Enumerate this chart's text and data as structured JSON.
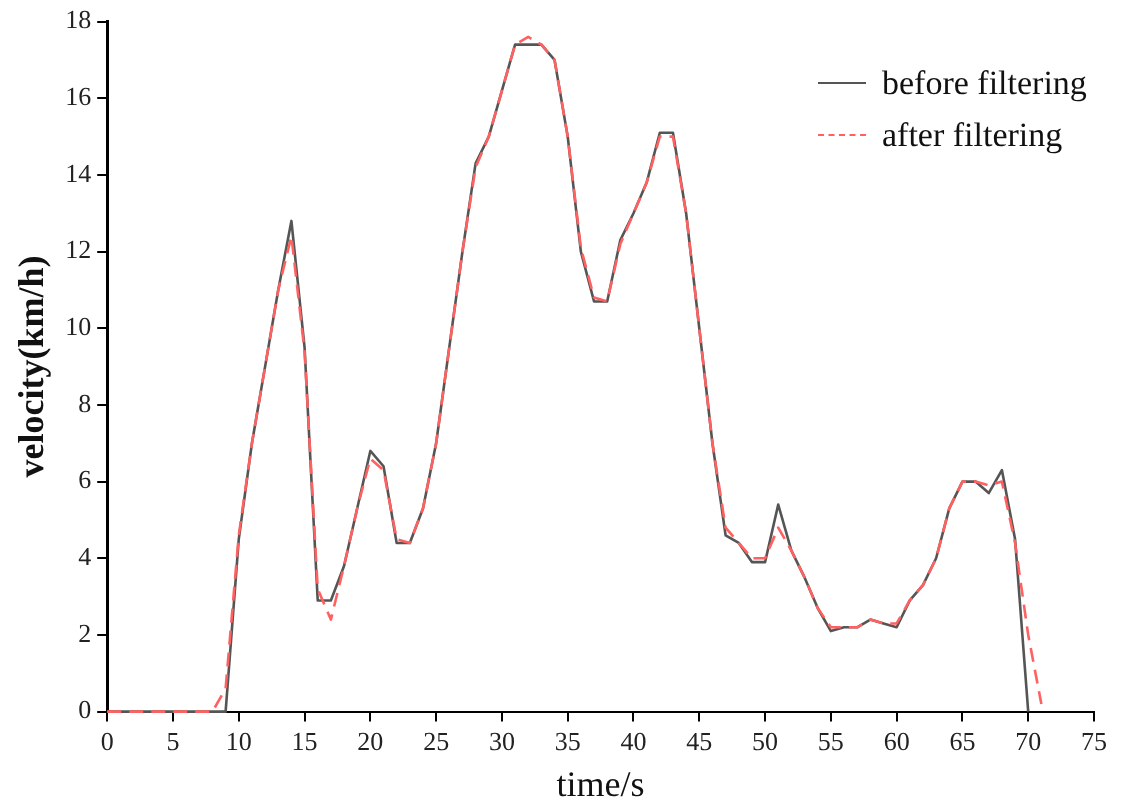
{
  "chart_data": {
    "type": "line",
    "xlabel": "time/s",
    "ylabel": "velocity(km/h)",
    "xlim": [
      0,
      75
    ],
    "xticks": [
      0,
      5,
      10,
      15,
      20,
      25,
      30,
      35,
      40,
      45,
      50,
      55,
      60,
      65,
      70,
      75
    ],
    "ylim": [
      0,
      18
    ],
    "yticks": [
      0,
      2,
      4,
      6,
      8,
      10,
      12,
      14,
      16,
      18
    ],
    "grid": false,
    "legend": "top right",
    "marker": "none",
    "series": [
      {
        "name": "before filtering",
        "color": "#555555",
        "line_style": "solid",
        "x": [
          0,
          1,
          2,
          3,
          4,
          5,
          6,
          7,
          8,
          9,
          10,
          11,
          12,
          13,
          14,
          15,
          16,
          17,
          18,
          19,
          20,
          21,
          22,
          23,
          24,
          25,
          26,
          27,
          28,
          29,
          30,
          31,
          32,
          33,
          34,
          35,
          36,
          37,
          38,
          39,
          40,
          41,
          42,
          43,
          44,
          45,
          46,
          47,
          48,
          49,
          50,
          51,
          52,
          53,
          54,
          55,
          56,
          57,
          58,
          59,
          60,
          61,
          62,
          63,
          64,
          65,
          66,
          67,
          68,
          69,
          70
        ],
        "values": [
          0,
          0,
          0,
          0,
          0,
          0,
          0,
          0,
          0,
          0,
          4.5,
          7,
          9,
          11,
          12.8,
          9.5,
          2.9,
          2.9,
          3.8,
          5.3,
          6.8,
          6.4,
          4.4,
          4.4,
          5.3,
          7,
          9.5,
          12,
          14.3,
          15,
          16.2,
          17.4,
          17.4,
          17.4,
          17,
          15,
          12,
          10.7,
          10.7,
          12.3,
          13,
          13.8,
          15.1,
          15.1,
          13,
          10,
          7,
          4.6,
          4.4,
          3.9,
          3.9,
          5.4,
          4.2,
          3.5,
          2.7,
          2.1,
          2.2,
          2.2,
          2.4,
          2.3,
          2.2,
          2.9,
          3.3,
          4,
          5.3,
          6,
          6,
          5.7,
          6.3,
          4.5,
          0
        ]
      },
      {
        "name": "after filtering",
        "color": "#ff6060",
        "line_style": "dashed",
        "x": [
          0,
          1,
          2,
          3,
          4,
          5,
          6,
          7,
          8,
          9,
          10,
          11,
          12,
          13,
          14,
          15,
          16,
          17,
          18,
          19,
          20,
          21,
          22,
          23,
          24,
          25,
          26,
          27,
          28,
          29,
          30,
          31,
          32,
          33,
          34,
          35,
          36,
          37,
          38,
          39,
          40,
          41,
          42,
          43,
          44,
          45,
          46,
          47,
          48,
          49,
          50,
          51,
          52,
          53,
          54,
          55,
          56,
          57,
          58,
          59,
          60,
          61,
          62,
          63,
          64,
          65,
          66,
          67,
          68,
          69,
          70,
          71
        ],
        "values": [
          0,
          0,
          0,
          0,
          0,
          0,
          0,
          0,
          0,
          0.6,
          4.6,
          7,
          9,
          11,
          12.4,
          9.4,
          3.2,
          2.4,
          3.8,
          5.3,
          6.6,
          6.3,
          4.5,
          4.4,
          5.3,
          7,
          9.5,
          12,
          14.2,
          15,
          16.2,
          17.4,
          17.6,
          17.4,
          17,
          15,
          12.1,
          10.8,
          10.7,
          12.2,
          13,
          13.8,
          15,
          15,
          13,
          10,
          7,
          4.8,
          4.4,
          4,
          4,
          4.8,
          4.2,
          3.5,
          2.7,
          2.2,
          2.2,
          2.2,
          2.4,
          2.3,
          2.3,
          2.9,
          3.3,
          4,
          5.3,
          6,
          6,
          5.9,
          6,
          4.4,
          2,
          0.2
        ]
      }
    ]
  }
}
